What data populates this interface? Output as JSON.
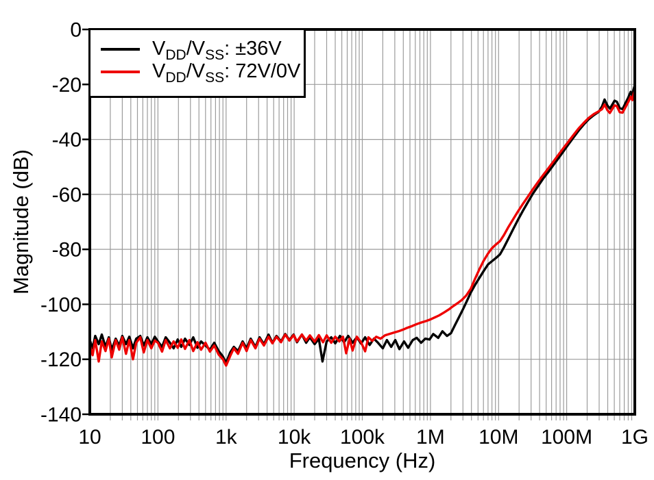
{
  "figure": {
    "background": "#ffffff",
    "frame_color": "#000000",
    "grid_color": "#9b9b9b",
    "tick_color": "#000000"
  },
  "chart_data": {
    "type": "line",
    "title": "",
    "xlabel": "Frequency (Hz)",
    "ylabel": "Magnitude (dB)",
    "x_scale": "log",
    "xlim": [
      10,
      1000000000
    ],
    "ylim": [
      -140,
      0
    ],
    "x_tick_values": [
      10,
      100,
      1000,
      10000,
      100000,
      1000000,
      10000000,
      100000000,
      1000000000
    ],
    "x_tick_labels": [
      "10",
      "100",
      "1k",
      "10k",
      "100k",
      "1M",
      "10M",
      "100M",
      "1G"
    ],
    "y_tick_values": [
      0,
      -20,
      -40,
      -60,
      -80,
      -100,
      -120,
      -140
    ],
    "y_tick_labels": [
      "0",
      "-20",
      "-40",
      "-60",
      "-80",
      "-100",
      "-120",
      "-140"
    ],
    "grid": {
      "vertical": "log decades with minor lines 2-9",
      "horizontal": "every 20 dB",
      "color": "#9b9b9b"
    },
    "legend_position": "top-left",
    "series": [
      {
        "id": "vdd-vss-pm36v",
        "name": "VDD/VSS: ±36V",
        "label_parts": [
          "V",
          "DD",
          "/V",
          "SS",
          ": ±36V"
        ],
        "color": "#000000",
        "points": [
          [
            10,
            -113
          ],
          [
            11,
            -116
          ],
          [
            12,
            -111.5
          ],
          [
            13.5,
            -114.5
          ],
          [
            15,
            -111
          ],
          [
            17,
            -115.5
          ],
          [
            19,
            -112
          ],
          [
            21,
            -116.5
          ],
          [
            24,
            -112.5
          ],
          [
            27,
            -115
          ],
          [
            30,
            -111.5
          ],
          [
            34,
            -114.5
          ],
          [
            38,
            -111.8
          ],
          [
            43,
            -116
          ],
          [
            48,
            -112.5
          ],
          [
            55,
            -111.5
          ],
          [
            62,
            -115
          ],
          [
            70,
            -112
          ],
          [
            80,
            -114.5
          ],
          [
            90,
            -111.8
          ],
          [
            100,
            -113.5
          ],
          [
            115,
            -115.5
          ],
          [
            130,
            -112
          ],
          [
            150,
            -114
          ],
          [
            170,
            -116
          ],
          [
            195,
            -112.8
          ],
          [
            220,
            -115.5
          ],
          [
            250,
            -112.5
          ],
          [
            290,
            -114.8
          ],
          [
            330,
            -112
          ],
          [
            380,
            -115.8
          ],
          [
            430,
            -113.5
          ],
          [
            500,
            -115
          ],
          [
            580,
            -116.5
          ],
          [
            670,
            -114
          ],
          [
            780,
            -117
          ],
          [
            900,
            -119
          ],
          [
            1000,
            -121.3
          ],
          [
            1150,
            -117.5
          ],
          [
            1300,
            -115.5
          ],
          [
            1500,
            -117
          ],
          [
            1750,
            -113.5
          ],
          [
            2000,
            -116
          ],
          [
            2300,
            -112.5
          ],
          [
            2700,
            -115.5
          ],
          [
            3100,
            -112
          ],
          [
            3600,
            -114.5
          ],
          [
            4200,
            -111
          ],
          [
            4800,
            -114
          ],
          [
            5500,
            -111.5
          ],
          [
            6400,
            -113.5
          ],
          [
            7400,
            -110.8
          ],
          [
            8500,
            -113
          ],
          [
            9800,
            -111
          ],
          [
            11000,
            -113.8
          ],
          [
            13000,
            -111
          ],
          [
            15000,
            -114
          ],
          [
            17000,
            -112
          ],
          [
            20000,
            -114.5
          ],
          [
            23000,
            -112.5
          ],
          [
            26000,
            -120.8
          ],
          [
            30000,
            -113.5
          ],
          [
            35000,
            -112
          ],
          [
            40000,
            -114.2
          ],
          [
            47000,
            -111.5
          ],
          [
            54000,
            -113.8
          ],
          [
            62000,
            -111.5
          ],
          [
            72000,
            -114
          ],
          [
            83000,
            -112
          ],
          [
            96000,
            -114.3
          ],
          [
            110000,
            -112
          ],
          [
            128000,
            -114.8
          ],
          [
            148000,
            -112.5
          ],
          [
            170000,
            -114
          ],
          [
            200000,
            -116
          ],
          [
            230000,
            -113
          ],
          [
            265000,
            -115.5
          ],
          [
            305000,
            -113
          ],
          [
            350000,
            -116.3
          ],
          [
            410000,
            -113.5
          ],
          [
            470000,
            -115.8
          ],
          [
            550000,
            -113
          ],
          [
            630000,
            -112.2
          ],
          [
            730000,
            -114
          ],
          [
            840000,
            -112.5
          ],
          [
            970000,
            -112.8
          ],
          [
            1100000,
            -110.8
          ],
          [
            1300000,
            -112.2
          ],
          [
            1500000,
            -109.8
          ],
          [
            1750000,
            -111.5
          ],
          [
            2000000,
            -110.5
          ],
          [
            2300000,
            -107.5
          ],
          [
            2650000,
            -104.5
          ],
          [
            3000000,
            -101.8
          ],
          [
            3400000,
            -99
          ],
          [
            3900000,
            -95.8
          ],
          [
            4500000,
            -93
          ],
          [
            5200000,
            -90.5
          ],
          [
            6000000,
            -88
          ],
          [
            7000000,
            -85.5
          ],
          [
            8100000,
            -84.2
          ],
          [
            9300000,
            -83
          ],
          [
            10500000,
            -81.8
          ],
          [
            12000000,
            -79.3
          ],
          [
            14000000,
            -76
          ],
          [
            16500000,
            -72.5
          ],
          [
            19500000,
            -69
          ],
          [
            23000000,
            -65.8
          ],
          [
            27000000,
            -62.8
          ],
          [
            32000000,
            -59.7
          ],
          [
            38000000,
            -57
          ],
          [
            45000000,
            -54.3
          ],
          [
            54000000,
            -51.8
          ],
          [
            64000000,
            -49.3
          ],
          [
            76000000,
            -46.8
          ],
          [
            90000000,
            -44.3
          ],
          [
            107000000,
            -41.7
          ],
          [
            127000000,
            -39.2
          ],
          [
            150000000,
            -36.8
          ],
          [
            178000000,
            -34.6
          ],
          [
            210000000,
            -32.7
          ],
          [
            250000000,
            -31.2
          ],
          [
            295000000,
            -30
          ],
          [
            330000000,
            -28
          ],
          [
            360000000,
            -25.5
          ],
          [
            395000000,
            -27.6
          ],
          [
            430000000,
            -28.8
          ],
          [
            465000000,
            -27.4
          ],
          [
            505000000,
            -25.9
          ],
          [
            545000000,
            -26.3
          ],
          [
            600000000,
            -28.6
          ],
          [
            660000000,
            -29
          ],
          [
            730000000,
            -26.8
          ],
          [
            800000000,
            -24.8
          ],
          [
            870000000,
            -22.7
          ],
          [
            920000000,
            -24
          ],
          [
            960000000,
            -21.8
          ],
          [
            1000000000,
            -20.3
          ]
        ]
      },
      {
        "id": "vdd-vss-72v-0v",
        "name": "VDD/VSS: 72V/0V",
        "label_parts": [
          "V",
          "DD",
          "/V",
          "SS",
          ": 72V/0V"
        ],
        "color": "#ee0000",
        "points": [
          [
            10,
            -115
          ],
          [
            11,
            -118.5
          ],
          [
            12,
            -113
          ],
          [
            13.5,
            -120.8
          ],
          [
            15,
            -113.5
          ],
          [
            17,
            -117
          ],
          [
            19,
            -112.5
          ],
          [
            21,
            -119.3
          ],
          [
            24,
            -113
          ],
          [
            27,
            -116.5
          ],
          [
            30,
            -112
          ],
          [
            34,
            -118
          ],
          [
            38,
            -113
          ],
          [
            43,
            -120
          ],
          [
            48,
            -114
          ],
          [
            55,
            -112
          ],
          [
            62,
            -117.5
          ],
          [
            70,
            -113
          ],
          [
            80,
            -116
          ],
          [
            90,
            -113.2
          ],
          [
            100,
            -114
          ],
          [
            115,
            -117.2
          ],
          [
            130,
            -113
          ],
          [
            150,
            -116
          ],
          [
            170,
            -113.5
          ],
          [
            195,
            -115.8
          ],
          [
            220,
            -112.8
          ],
          [
            250,
            -116.2
          ],
          [
            290,
            -113
          ],
          [
            330,
            -117
          ],
          [
            380,
            -113.8
          ],
          [
            430,
            -116.5
          ],
          [
            500,
            -114
          ],
          [
            580,
            -117.2
          ],
          [
            670,
            -115
          ],
          [
            780,
            -118.3
          ],
          [
            900,
            -120
          ],
          [
            1000,
            -122.3
          ],
          [
            1150,
            -118.8
          ],
          [
            1300,
            -116
          ],
          [
            1500,
            -118
          ],
          [
            1750,
            -114
          ],
          [
            2000,
            -117
          ],
          [
            2300,
            -113
          ],
          [
            2700,
            -116
          ],
          [
            3100,
            -112.5
          ],
          [
            3600,
            -115
          ],
          [
            4200,
            -111.8
          ],
          [
            4800,
            -114.2
          ],
          [
            5500,
            -111.8
          ],
          [
            6400,
            -113.8
          ],
          [
            7400,
            -111
          ],
          [
            8500,
            -113.2
          ],
          [
            9800,
            -111.2
          ],
          [
            11000,
            -113.5
          ],
          [
            13000,
            -111
          ],
          [
            15000,
            -113.2
          ],
          [
            17000,
            -111.3
          ],
          [
            20000,
            -113.6
          ],
          [
            23000,
            -111.2
          ],
          [
            26500,
            -113.8
          ],
          [
            30000,
            -111.3
          ],
          [
            35000,
            -114
          ],
          [
            40000,
            -111.8
          ],
          [
            46000,
            -113.5
          ],
          [
            52000,
            -111.8
          ],
          [
            58000,
            -117.8
          ],
          [
            65000,
            -112.5
          ],
          [
            72000,
            -116.8
          ],
          [
            83000,
            -111.8
          ],
          [
            96000,
            -113.8
          ],
          [
            110000,
            -117.1
          ],
          [
            123000,
            -112
          ],
          [
            140000,
            -113.3
          ],
          [
            160000,
            -111.8
          ],
          [
            185000,
            -112.5
          ],
          [
            215000,
            -111.3
          ],
          [
            250000,
            -110.8
          ],
          [
            290000,
            -110.3
          ],
          [
            340000,
            -109.8
          ],
          [
            395000,
            -109.2
          ],
          [
            460000,
            -108.5
          ],
          [
            540000,
            -107.9
          ],
          [
            630000,
            -107.2
          ],
          [
            740000,
            -106.6
          ],
          [
            860000,
            -106.1
          ],
          [
            1000000,
            -105.5
          ],
          [
            1150000,
            -104.8
          ],
          [
            1350000,
            -104
          ],
          [
            1600000,
            -102.9
          ],
          [
            1850000,
            -101.9
          ],
          [
            2150000,
            -100.7
          ],
          [
            2500000,
            -99.6
          ],
          [
            2900000,
            -98.4
          ],
          [
            3350000,
            -96.8
          ],
          [
            3900000,
            -94.4
          ],
          [
            4500000,
            -90.8
          ],
          [
            5200000,
            -87.4
          ],
          [
            6000000,
            -84.3
          ],
          [
            7000000,
            -81.5
          ],
          [
            8000000,
            -79.6
          ],
          [
            9000000,
            -78.4
          ],
          [
            10500000,
            -77
          ],
          [
            12000000,
            -74.8
          ],
          [
            14000000,
            -71.8
          ],
          [
            16500000,
            -68.9
          ],
          [
            19500000,
            -66
          ],
          [
            23000000,
            -63.3
          ],
          [
            27000000,
            -60.8
          ],
          [
            32000000,
            -58.1
          ],
          [
            38000000,
            -55.5
          ],
          [
            45000000,
            -53
          ],
          [
            54000000,
            -50.5
          ],
          [
            64000000,
            -48
          ],
          [
            76000000,
            -45.5
          ],
          [
            90000000,
            -43.1
          ],
          [
            107000000,
            -40.7
          ],
          [
            127000000,
            -38.3
          ],
          [
            150000000,
            -36
          ],
          [
            178000000,
            -34
          ],
          [
            210000000,
            -32.2
          ],
          [
            250000000,
            -30.8
          ],
          [
            295000000,
            -29.8
          ],
          [
            330000000,
            -29
          ],
          [
            360000000,
            -27.3
          ],
          [
            395000000,
            -29.3
          ],
          [
            430000000,
            -30.4
          ],
          [
            465000000,
            -29
          ],
          [
            505000000,
            -27.6
          ],
          [
            545000000,
            -27.9
          ],
          [
            600000000,
            -30.1
          ],
          [
            660000000,
            -30.3
          ],
          [
            730000000,
            -28.3
          ],
          [
            800000000,
            -26.4
          ],
          [
            870000000,
            -24.5
          ],
          [
            920000000,
            -25.7
          ],
          [
            960000000,
            -23.6
          ],
          [
            1000000000,
            -22.2
          ]
        ]
      }
    ]
  }
}
